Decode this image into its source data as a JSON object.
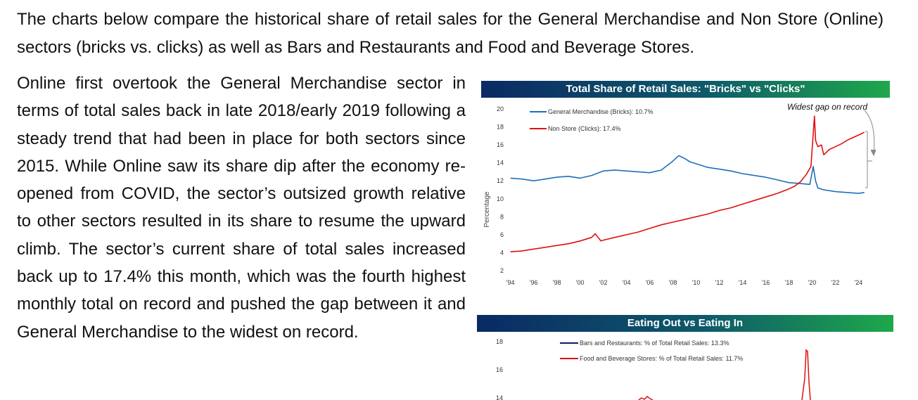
{
  "intro_text": "The charts below compare the historical share of retail sales for the General Merchandise and Non Store (Online) sectors (bricks vs. clicks) as well as Bars and Restaurants and Food and Beverage Stores.",
  "body_text": "Online first overtook the General Merchandise sector in terms of total sales back in late 2018/early 2019 following a steady trend that had been in place for both sectors since 2015. While Online saw its share dip after the economy re-opened from COVID, the sector’s outsized growth relative to other sectors resulted in its share to resume the upward climb. The sector’s current share of total sales increased back up to 17.4% this month, which was the fourth highest monthly total on record and pushed the gap between it and General Merchandise to the widest on record.",
  "colors": {
    "blue_series": "#1f6fb8",
    "red_series": "#e01010",
    "navy_series": "#0a1f5c",
    "banner_start": "#0a2a64",
    "banner_end": "#1ea84b"
  },
  "chart_data": [
    {
      "type": "line",
      "title": "Total Share of Retail Sales: \"Bricks\" vs \"Clicks\"",
      "ylabel": "Percentage",
      "ylim": [
        2,
        20
      ],
      "xlim": [
        1993.9,
        2024.7
      ],
      "yticks": [
        "2",
        "4",
        "6",
        "8",
        "10",
        "12",
        "14",
        "16",
        "18",
        "20"
      ],
      "xticks": [
        "'94",
        "'96",
        "'98",
        "'00",
        "'02",
        "'04",
        "'06",
        "'08",
        "'10",
        "'12",
        "'14",
        "'16",
        "'18",
        "'20",
        "'22",
        "'24"
      ],
      "annotation": "Widest gap on record",
      "legend_position": "top-left",
      "series": [
        {
          "name": "General Merchandise (Bricks): 10.7%",
          "color": "#1f6fb8",
          "x": [
            1994,
            1995,
            1996,
            1997,
            1998,
            1999,
            2000,
            2001,
            2002,
            2003,
            2004,
            2005,
            2006,
            2007,
            2008,
            2008.5,
            2009,
            2009.5,
            2010,
            2011,
            2012,
            2013,
            2014,
            2015,
            2016,
            2017,
            2018,
            2019,
            2019.8,
            2020.1,
            2020.3,
            2020.5,
            2021,
            2022,
            2023,
            2024,
            2024.5
          ],
          "y": [
            12.3,
            12.2,
            12.0,
            12.2,
            12.4,
            12.5,
            12.3,
            12.6,
            13.1,
            13.2,
            13.1,
            13.0,
            12.9,
            13.2,
            14.2,
            14.8,
            14.5,
            14.1,
            13.9,
            13.5,
            13.3,
            13.1,
            12.8,
            12.6,
            12.4,
            12.1,
            11.8,
            11.7,
            11.6,
            13.6,
            12.0,
            11.2,
            11.0,
            10.8,
            10.7,
            10.6,
            10.7
          ]
        },
        {
          "name": "Non Store (Clicks): 17.4%",
          "color": "#e01010",
          "x": [
            1994,
            1995,
            1996,
            1997,
            1998,
            1999,
            2000,
            2001,
            2001.3,
            2001.8,
            2002,
            2003,
            2004,
            2005,
            2006,
            2007,
            2008,
            2009,
            2010,
            2011,
            2012,
            2013,
            2014,
            2015,
            2016,
            2017,
            2018,
            2018.5,
            2019,
            2019.5,
            2019.9,
            2020.2,
            2020.3,
            2020.5,
            2020.8,
            2021,
            2021.5,
            2022,
            2022.5,
            2023,
            2023.5,
            2024,
            2024.5
          ],
          "y": [
            4.1,
            4.2,
            4.4,
            4.6,
            4.8,
            5.0,
            5.3,
            5.7,
            6.1,
            5.3,
            5.4,
            5.7,
            6.0,
            6.3,
            6.7,
            7.1,
            7.4,
            7.7,
            8.0,
            8.3,
            8.7,
            9.0,
            9.4,
            9.8,
            10.2,
            10.6,
            11.1,
            11.4,
            11.9,
            12.7,
            13.6,
            19.2,
            16.5,
            15.8,
            16.0,
            14.9,
            15.5,
            15.8,
            16.1,
            16.5,
            16.8,
            17.1,
            17.4
          ]
        }
      ]
    },
    {
      "type": "line",
      "title": "Eating Out vs Eating In",
      "yticks": [
        "14",
        "16",
        "18"
      ],
      "legend_position": "top-left",
      "series": [
        {
          "name": "Bars and Restaurants: % of Total Retail Sales: 13.3%",
          "color": "#0a1f5c"
        },
        {
          "name": "Food and Beverage Stores: % of Total Retail Sales: 11.7%",
          "color": "#e01010"
        }
      ]
    }
  ]
}
